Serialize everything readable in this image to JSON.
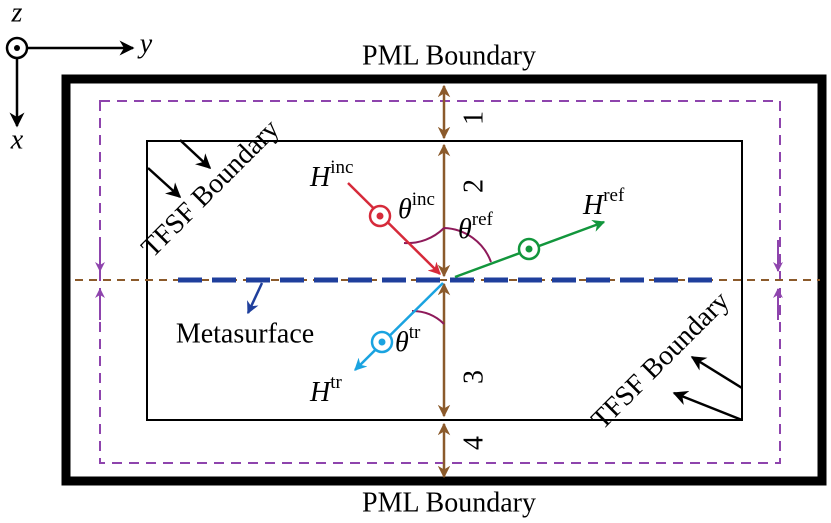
{
  "axes": {
    "z": "z",
    "y": "y",
    "x": "x"
  },
  "boundaries": {
    "pml_top": "PML Boundary",
    "pml_bottom": "PML Boundary",
    "tfsf_left": "TFSF Boundary",
    "tfsf_right": "TFSF Boundary"
  },
  "metasurface": "Metasurface",
  "fields": [
    {
      "symbol": "H",
      "sup": "inc"
    },
    {
      "symbol": "H",
      "sup": "ref"
    },
    {
      "symbol": "H",
      "sup": "tr"
    }
  ],
  "angles": [
    {
      "symbol": "θ",
      "sup": "inc"
    },
    {
      "symbol": "θ",
      "sup": "ref"
    },
    {
      "symbol": "θ",
      "sup": "tr"
    }
  ],
  "regions": [
    "1",
    "2",
    "3",
    "4"
  ]
}
